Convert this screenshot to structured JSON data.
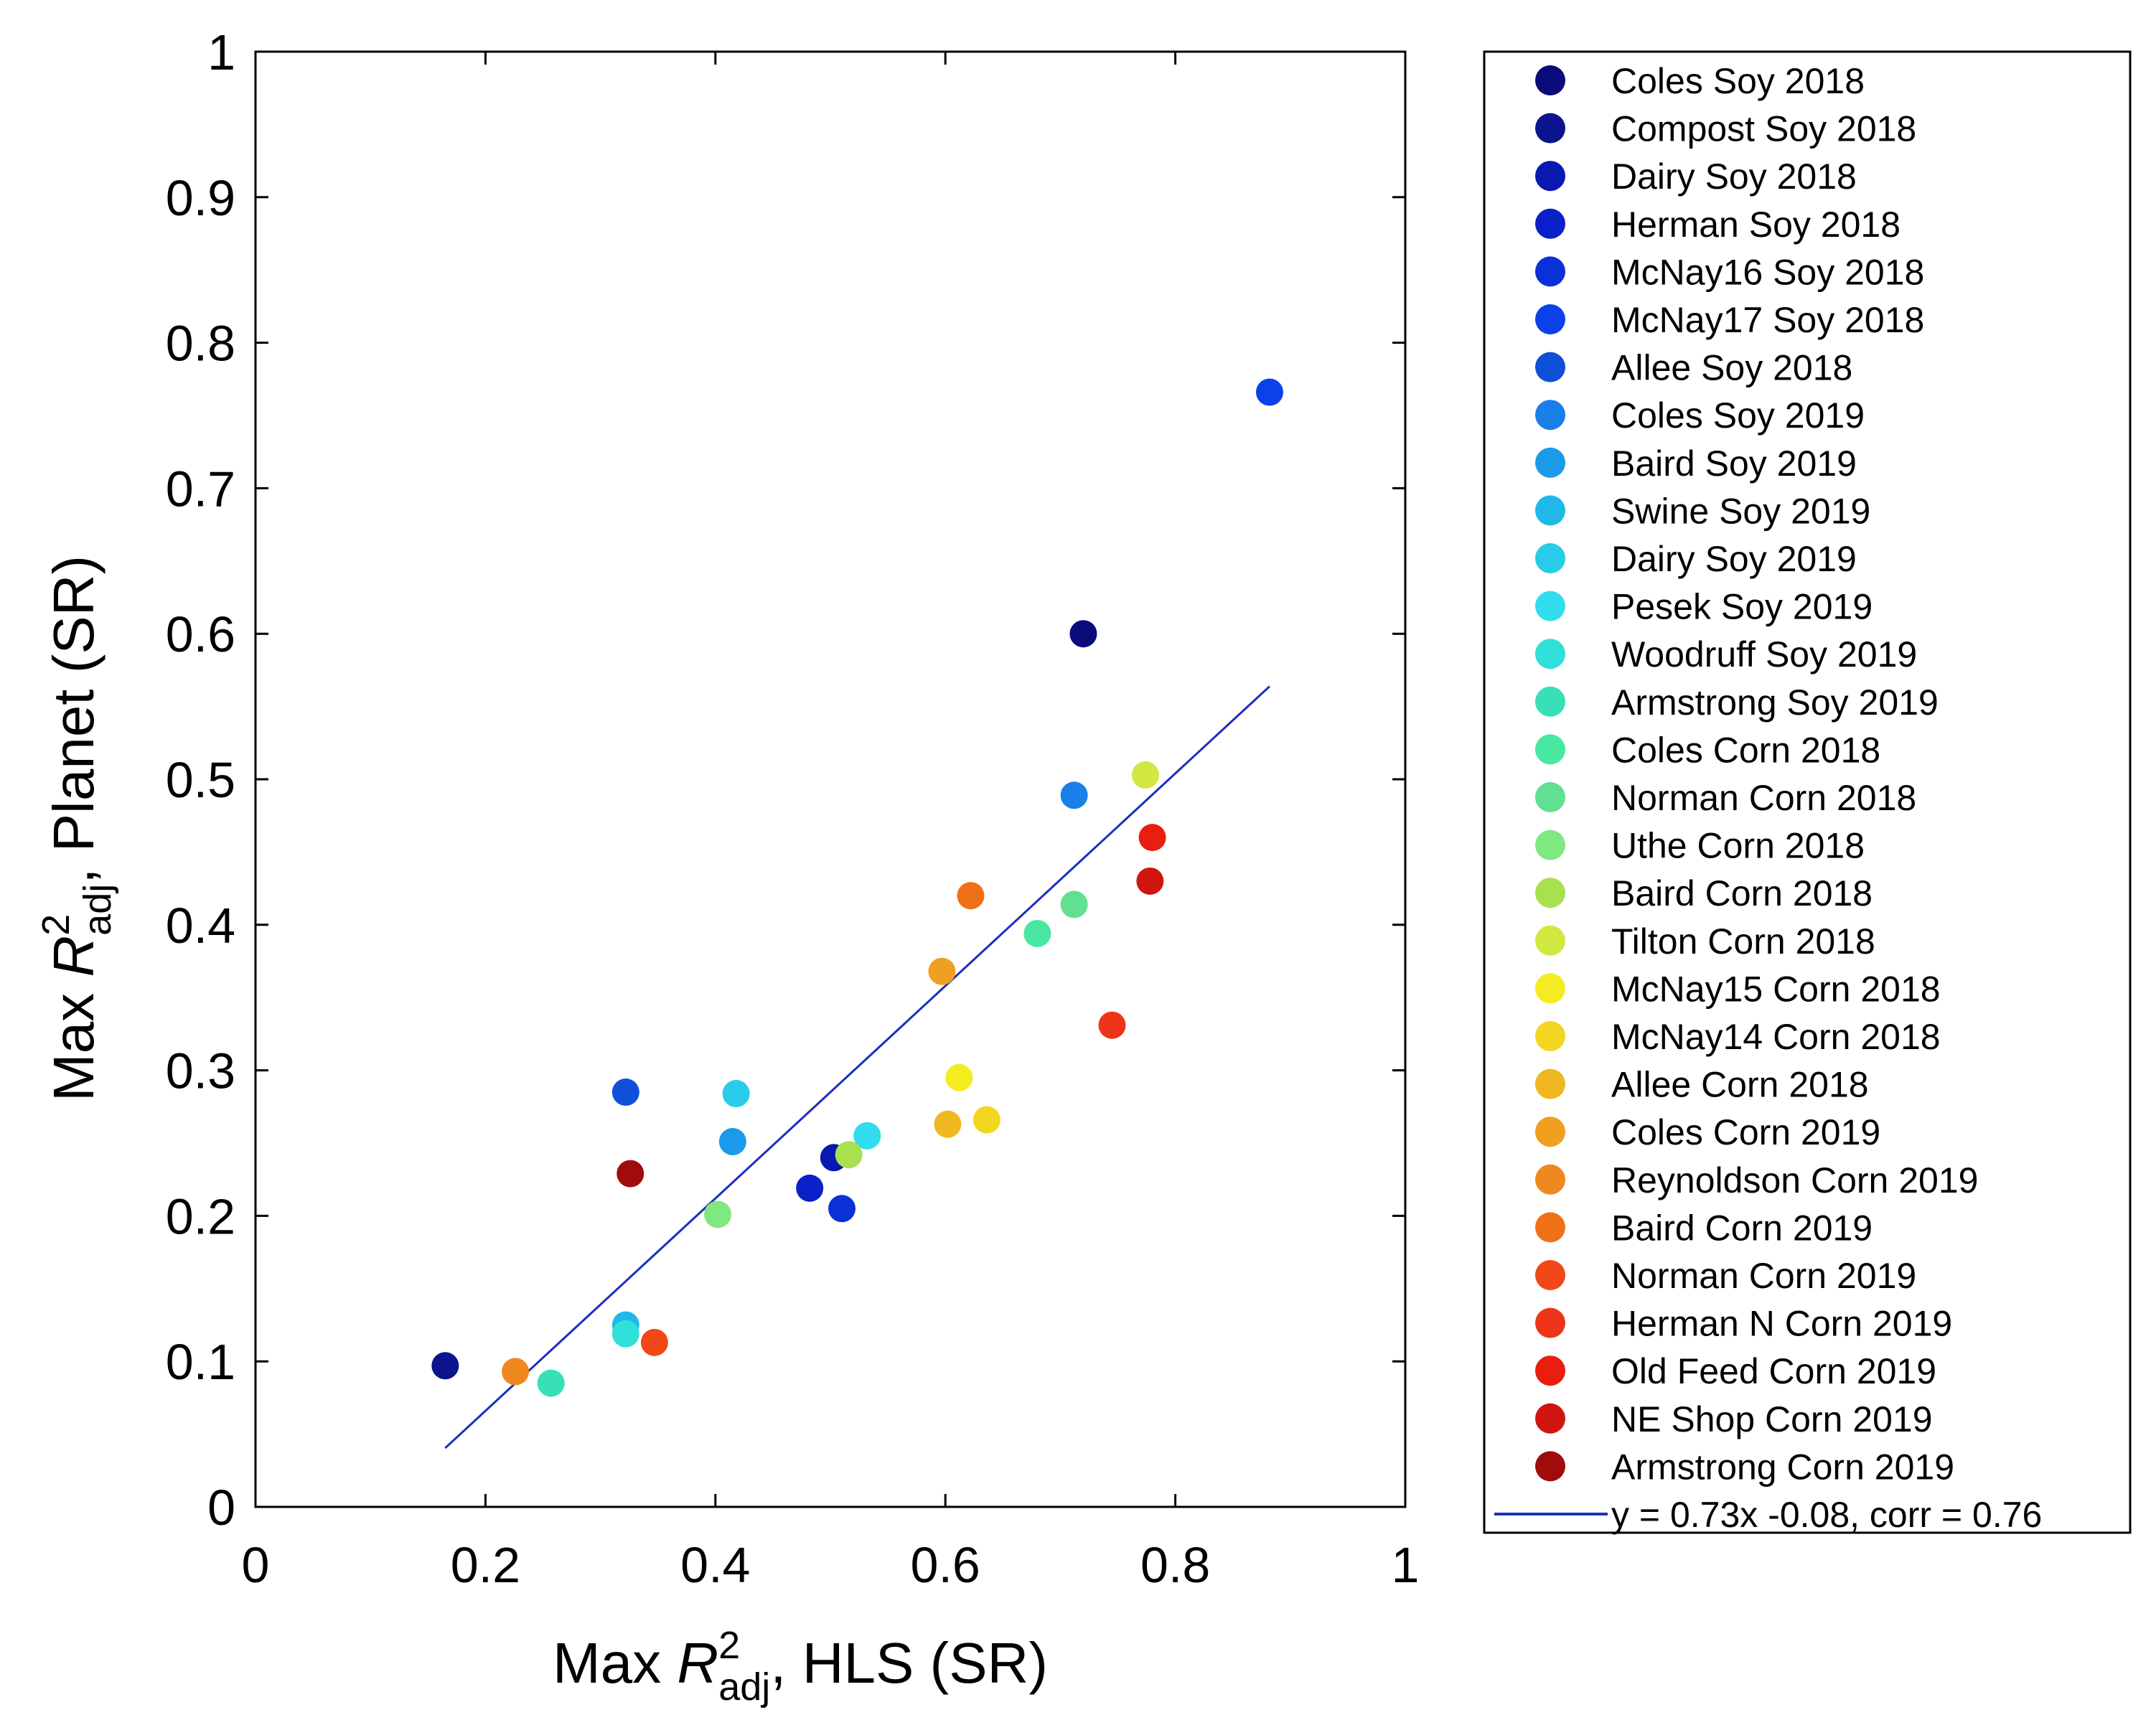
{
  "chart_data": {
    "type": "scatter",
    "xlabel": {
      "prefix": "Max ",
      "var": "R",
      "sup": "2",
      "sub": "adj",
      "suffix": ", HLS (SR)"
    },
    "ylabel": {
      "prefix": "Max ",
      "var": "R",
      "sup": "2",
      "sub": "adj",
      "suffix": ",  Planet  (SR)"
    },
    "xlim": [
      0,
      1
    ],
    "ylim": [
      0,
      1
    ],
    "xticks": [
      0,
      0.2,
      0.4,
      0.6,
      0.8,
      1
    ],
    "xtick_labels": [
      "0",
      "0.2",
      "0.4",
      "0.6",
      "0.8",
      "1"
    ],
    "yticks": [
      0,
      0.1,
      0.2,
      0.3,
      0.4,
      0.5,
      0.6,
      0.7,
      0.8,
      0.9,
      1
    ],
    "ytick_labels": [
      "0",
      "0.1",
      "0.2",
      "0.3",
      "0.4",
      "0.5",
      "0.6",
      "0.7",
      "0.8",
      "0.9",
      "1"
    ],
    "grid": false,
    "legend_position": "outside-right",
    "series": [
      {
        "name": "Coles Soy 2018",
        "color": "#0a0a7a",
        "x": 0.72,
        "y": 0.6
      },
      {
        "name": "Compost Soy 2018",
        "color": "#0b148c",
        "x": 0.165,
        "y": 0.097
      },
      {
        "name": "Dairy Soy 2018",
        "color": "#0818b0",
        "x": 0.503,
        "y": 0.24
      },
      {
        "name": "Herman Soy 2018",
        "color": "#0a20c8",
        "x": 0.482,
        "y": 0.219
      },
      {
        "name": "McNay16 Soy 2018",
        "color": "#0a30d8",
        "x": 0.51,
        "y": 0.205
      },
      {
        "name": "McNay17 Soy 2018",
        "color": "#0c40e8",
        "x": 0.882,
        "y": 0.766
      },
      {
        "name": "Allee Soy 2018",
        "color": "#1050d8",
        "x": 0.322,
        "y": 0.285
      },
      {
        "name": "Coles Soy 2019",
        "color": "#1880e8",
        "x": 0.712,
        "y": 0.489
      },
      {
        "name": "Baird Soy 2019",
        "color": "#1a9ae8",
        "x": 0.415,
        "y": 0.251
      },
      {
        "name": "Swine Soy 2019",
        "color": "#20b8e8",
        "x": 0.322,
        "y": 0.125
      },
      {
        "name": "Dairy Soy 2019",
        "color": "#28cce8",
        "x": 0.418,
        "y": 0.284
      },
      {
        "name": "Pesek Soy 2019",
        "color": "#30dcee",
        "x": 0.532,
        "y": 0.255
      },
      {
        "name": "Woodruff Soy 2019",
        "color": "#30e0d8",
        "x": 0.322,
        "y": 0.119
      },
      {
        "name": "Armstrong Soy 2019",
        "color": "#38e0b8",
        "x": 0.257,
        "y": 0.085
      },
      {
        "name": "Coles Corn 2018",
        "color": "#48e8a0",
        "x": 0.68,
        "y": 0.394
      },
      {
        "name": "Norman Corn 2018",
        "color": "#60e090",
        "x": 0.712,
        "y": 0.414
      },
      {
        "name": "Uthe Corn 2018",
        "color": "#80e880",
        "x": 0.402,
        "y": 0.201
      },
      {
        "name": "Baird Corn 2018",
        "color": "#a8e050",
        "x": 0.516,
        "y": 0.242
      },
      {
        "name": "Tilton Corn 2018",
        "color": "#d0e840",
        "x": 0.774,
        "y": 0.503
      },
      {
        "name": "McNay15 Corn 2018",
        "color": "#f4ec20",
        "x": 0.612,
        "y": 0.295
      },
      {
        "name": "McNay14 Corn 2018",
        "color": "#f2d620",
        "x": 0.636,
        "y": 0.266
      },
      {
        "name": "Allee Corn 2018",
        "color": "#f0b820",
        "x": 0.602,
        "y": 0.263
      },
      {
        "name": "Coles Corn 2019",
        "color": "#f0a020",
        "x": 0.597,
        "y": 0.368
      },
      {
        "name": "Reynoldson Corn 2019",
        "color": "#f08820",
        "x": 0.226,
        "y": 0.093
      },
      {
        "name": "Baird Corn 2019",
        "color": "#f07018",
        "x": 0.622,
        "y": 0.42
      },
      {
        "name": "Norman Corn 2019",
        "color": "#f04818",
        "x": 0.347,
        "y": 0.113
      },
      {
        "name": "Herman N Corn 2019",
        "color": "#ee3418",
        "x": 0.745,
        "y": 0.331
      },
      {
        "name": "Old Feed Corn 2019",
        "color": "#e81e10",
        "x": 0.78,
        "y": 0.46
      },
      {
        "name": "NE Shop Corn 2019",
        "color": "#d01410",
        "x": 0.778,
        "y": 0.43
      },
      {
        "name": "Armstrong Corn 2019",
        "color": "#a00c0c",
        "x": 0.326,
        "y": 0.229
      }
    ],
    "fit_line": {
      "label": "y = 0.73x -0.08, corr = 0.76",
      "slope": 0.73,
      "intercept": -0.08,
      "x_range": [
        0.165,
        0.882
      ],
      "color": "#1c2ec0"
    }
  }
}
